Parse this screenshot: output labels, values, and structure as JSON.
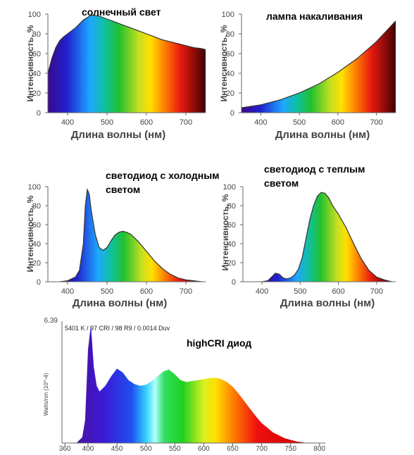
{
  "charts": [
    {
      "id": "sun",
      "title_lines": [
        "солнечный свет"
      ],
      "xlabel": "Длина волны (нм)",
      "ylabel": "Интенсивность, %",
      "xticks": [
        400,
        500,
        600,
        700
      ],
      "yticks": [
        0,
        20,
        40,
        60,
        80,
        100
      ]
    },
    {
      "id": "incandescent",
      "title_lines": [
        "лампа  накаливания"
      ],
      "xlabel": "Длина волны (нм)",
      "ylabel": "Интенсивность, %",
      "xticks": [
        400,
        500,
        600,
        700
      ],
      "yticks": [
        0,
        20,
        40,
        60,
        80,
        100
      ]
    },
    {
      "id": "cold",
      "title_lines": [
        "светодиод с холодным",
        "светом"
      ],
      "xlabel": "Длина волны (нм)",
      "ylabel": "Интенсивность, %",
      "xticks": [
        400,
        500,
        600,
        700
      ],
      "yticks": [
        0,
        20,
        40,
        60,
        80,
        100
      ]
    },
    {
      "id": "warm",
      "title_lines": [
        "светодиод с теплым",
        "светом"
      ],
      "xlabel": "Длина волны (нм)",
      "ylabel": "Интенсивность, %",
      "xticks": [
        400,
        500,
        600,
        700
      ],
      "yticks": [
        0,
        20,
        40,
        60,
        80,
        100
      ]
    },
    {
      "id": "highcri",
      "title_lines": [
        "highCRI  диод"
      ],
      "xlabel": "",
      "ylabel": "Watts/nm (10^-4)",
      "ymax_label": "6.39",
      "info": "5401 K / 97 CRI / 98 R9 / 0.0014 Duv",
      "xticks": [
        360,
        400,
        450,
        500,
        550,
        600,
        650,
        700,
        750,
        800
      ],
      "yticks": []
    }
  ],
  "chart_data": [
    {
      "type": "area",
      "title": "солнечный свет",
      "xlabel": "Длина волны (нм)",
      "ylabel": "Интенсивность, %",
      "xlim": [
        350,
        750
      ],
      "ylim": [
        0,
        100
      ],
      "x": [
        350,
        360,
        370,
        380,
        390,
        400,
        420,
        440,
        460,
        480,
        500,
        520,
        540,
        560,
        580,
        600,
        620,
        640,
        660,
        680,
        700,
        720,
        740,
        750
      ],
      "y": [
        40,
        55,
        66,
        73,
        77,
        80,
        86,
        94,
        99,
        98,
        95,
        92,
        89,
        86,
        83,
        80,
        77,
        74,
        72,
        70,
        68,
        66,
        65,
        64
      ]
    },
    {
      "type": "area",
      "title": "лампа  накаливания",
      "xlabel": "Длина волны (нм)",
      "ylabel": "Интенсивность, %",
      "xlim": [
        350,
        750
      ],
      "ylim": [
        0,
        100
      ],
      "x": [
        350,
        400,
        450,
        500,
        550,
        600,
        650,
        700,
        750
      ],
      "y": [
        5,
        8,
        13,
        20,
        29,
        41,
        55,
        72,
        93
      ]
    },
    {
      "type": "area",
      "title": "светодиод с холодным светом",
      "xlabel": "Длина волны (нм)",
      "ylabel": "Интенсивность, %",
      "xlim": [
        350,
        750
      ],
      "ylim": [
        0,
        100
      ],
      "x": [
        380,
        400,
        420,
        430,
        440,
        445,
        450,
        455,
        460,
        470,
        480,
        490,
        500,
        510,
        520,
        530,
        540,
        550,
        560,
        580,
        600,
        620,
        640,
        660,
        680,
        700,
        720,
        740
      ],
      "y": [
        0,
        1,
        5,
        12,
        40,
        80,
        97,
        92,
        75,
        50,
        36,
        33,
        36,
        43,
        49,
        52,
        53,
        52,
        50,
        42,
        32,
        22,
        14,
        8,
        4,
        2,
        1,
        0
      ]
    },
    {
      "type": "area",
      "title": "светодиод с теплым светом",
      "xlabel": "Длина волны (нм)",
      "ylabel": "Интенсивность, %",
      "xlim": [
        350,
        750
      ],
      "ylim": [
        0,
        100
      ],
      "x": [
        400,
        415,
        425,
        435,
        445,
        455,
        465,
        475,
        485,
        495,
        505,
        515,
        525,
        535,
        545,
        555,
        565,
        575,
        585,
        600,
        620,
        640,
        660,
        680,
        700,
        720,
        740
      ],
      "y": [
        0,
        1,
        5,
        9,
        8,
        4,
        3,
        4,
        7,
        13,
        25,
        45,
        65,
        80,
        90,
        94,
        93,
        88,
        80,
        71,
        57,
        40,
        24,
        12,
        5,
        2,
        0
      ]
    },
    {
      "type": "area",
      "title": "highCRI  диод",
      "ylabel": "Watts/nm (10^-4)",
      "xlim": [
        355,
        810
      ],
      "ylim": [
        0,
        6.39
      ],
      "x": [
        380,
        390,
        395,
        400,
        405,
        410,
        415,
        420,
        430,
        440,
        450,
        460,
        470,
        480,
        490,
        500,
        510,
        520,
        530,
        540,
        550,
        560,
        570,
        580,
        590,
        600,
        610,
        620,
        630,
        640,
        650,
        660,
        670,
        680,
        690,
        700,
        720,
        740,
        760,
        780
      ],
      "y": [
        0,
        0.3,
        1.2,
        4.9,
        6.2,
        4.0,
        3.0,
        2.7,
        3.0,
        3.5,
        3.9,
        3.7,
        3.3,
        3.1,
        3.0,
        3.05,
        3.25,
        3.5,
        3.75,
        3.85,
        3.6,
        3.3,
        3.2,
        3.25,
        3.3,
        3.35,
        3.4,
        3.42,
        3.35,
        3.2,
        2.95,
        2.6,
        2.2,
        1.8,
        1.4,
        1.05,
        0.55,
        0.25,
        0.08,
        0
      ]
    }
  ]
}
